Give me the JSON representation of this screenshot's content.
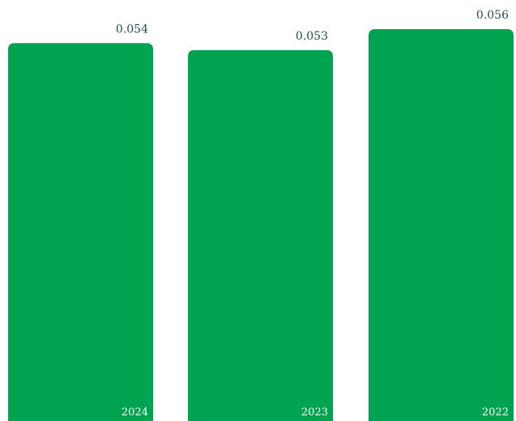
{
  "chart_data": {
    "type": "bar",
    "categories": [
      "2024",
      "2023",
      "2022"
    ],
    "values": [
      0.054,
      0.053,
      0.056
    ],
    "value_labels": [
      "0.054",
      "0.053",
      "0.056"
    ],
    "title": "",
    "xlabel": "",
    "ylabel": "",
    "ylim": [
      0,
      0.056
    ],
    "grid": false,
    "legend": "none",
    "colors": {
      "bar": "#00a350",
      "value_label": "#1f4f4a",
      "category_label": "#ffffff",
      "background": "#ffffff"
    }
  }
}
